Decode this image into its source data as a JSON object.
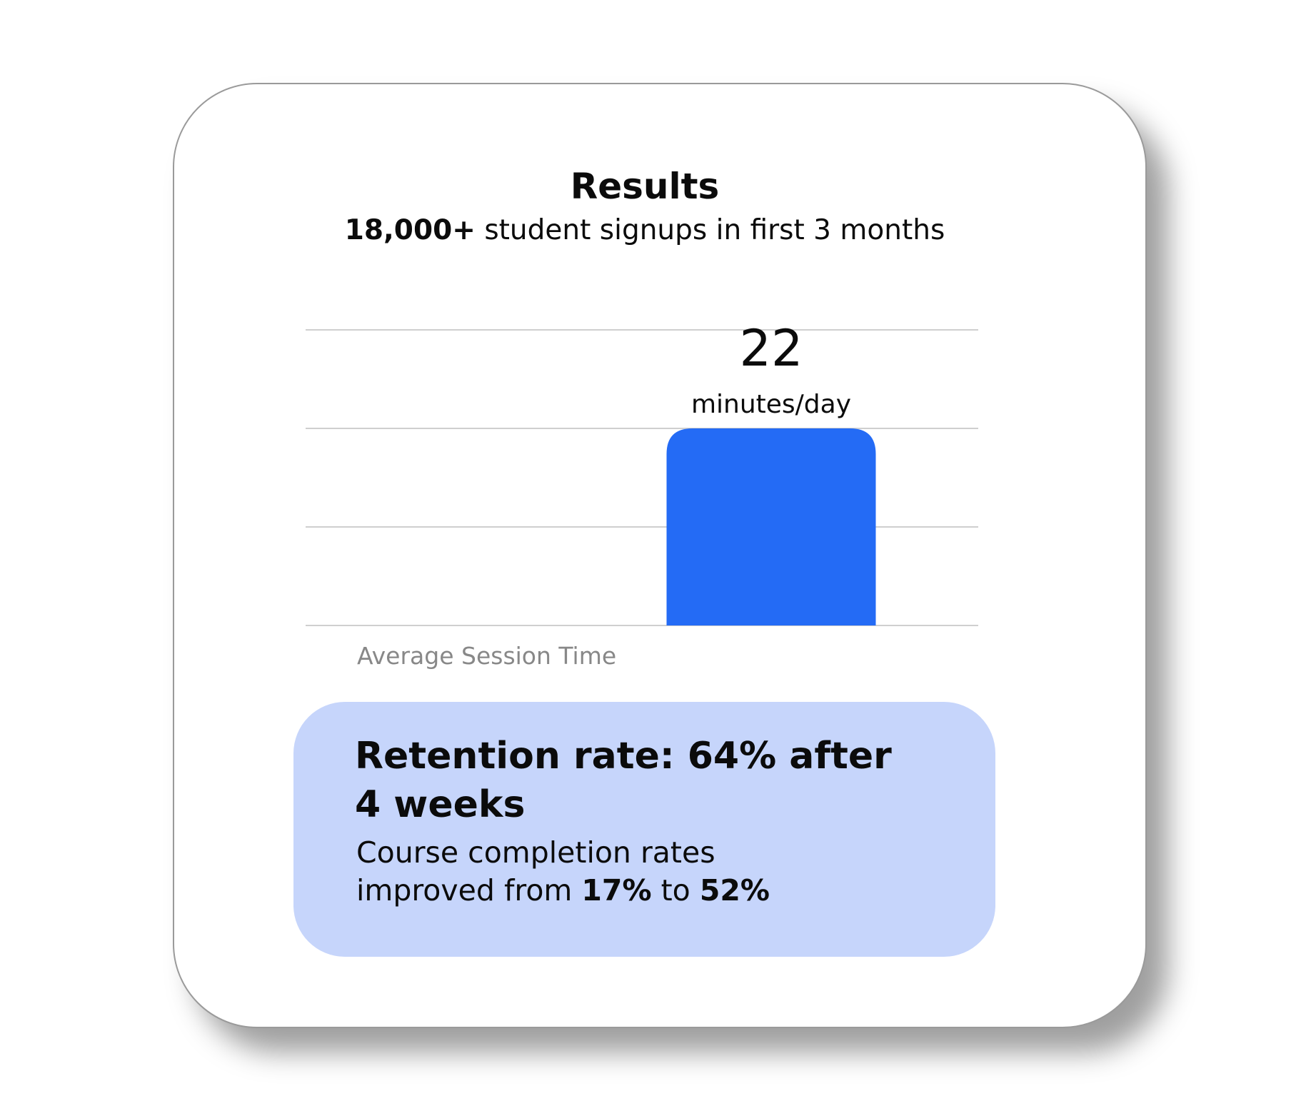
{
  "header": {
    "title": "Results",
    "subtitle_bold": "18,000+",
    "subtitle": "student signups in first 3 months"
  },
  "chart_data": {
    "type": "bar",
    "categories": [
      null
    ],
    "values": [
      22
    ],
    "value_unit": "minutes/day",
    "x_label": "Average Session Time",
    "color": "#246bf5",
    "ylim": [
      0,
      33
    ],
    "yticks": [
      0,
      11,
      22,
      33
    ],
    "grid": true
  },
  "callout": {
    "title": "Retention rate: 64% after 4 weeks",
    "text": "Course completion rates improved from",
    "from": "17%",
    "joiner": "to",
    "to": "52%"
  }
}
